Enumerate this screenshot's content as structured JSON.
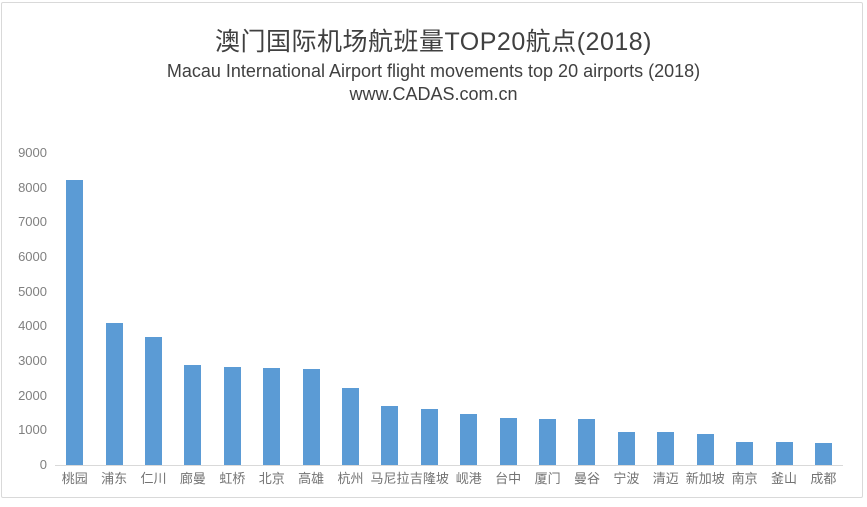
{
  "chart_data": {
    "type": "bar",
    "title": "澳门国际机场航班量TOP20航点(2018)",
    "subtitle": "Macau International Airport  flight movements top 20 airports (2018)",
    "source": "www.CADAS.com.cn",
    "xlabel": "",
    "ylabel": "",
    "categories": [
      "桃园",
      "浦东",
      "仁川",
      "廊曼",
      "虹桥",
      "北京",
      "高雄",
      "杭州",
      "马尼拉",
      "吉隆坡",
      "岘港",
      "台中",
      "厦门",
      "曼谷",
      "宁波",
      "清迈",
      "新加坡",
      "南京",
      "釜山",
      "成都"
    ],
    "values": [
      8230,
      4100,
      3690,
      2890,
      2820,
      2790,
      2760,
      2210,
      1700,
      1620,
      1460,
      1350,
      1320,
      1320,
      960,
      940,
      890,
      660,
      660,
      630
    ],
    "ylim": [
      0,
      9000
    ],
    "ytick_step": 1000,
    "grid": false,
    "legend": "none",
    "colors": {
      "bar": "#5b9bd5",
      "axis_line": "#d9d9d9",
      "tick_label": "#808080",
      "category_label": "#737373",
      "title_text": "#404040",
      "frame_border": "#d9d9d9"
    }
  }
}
